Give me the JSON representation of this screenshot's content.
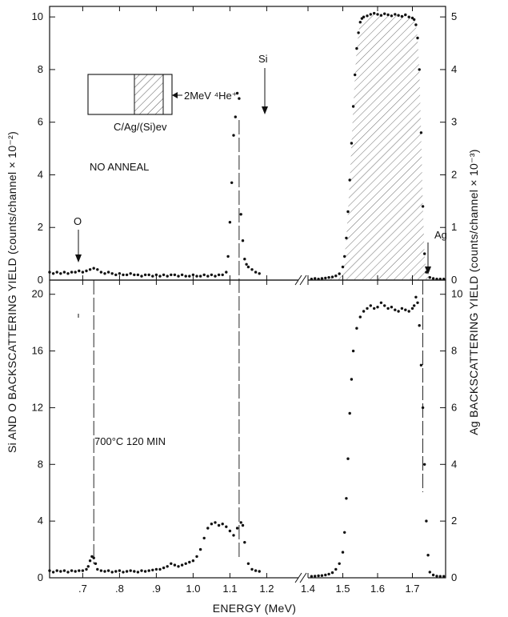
{
  "chart_data": [
    {
      "panel": "top",
      "type": "scatter",
      "annotation": "NO ANNEAL",
      "inset": {
        "label": "C/Ag/(Si)ev",
        "beam": "2MeV ⁴He⁺"
      },
      "peak_labels": [
        {
          "text": "O",
          "x": 0.73
        },
        {
          "text": "Si",
          "x": 1.125
        },
        {
          "text": "Ag",
          "x": 1.73
        }
      ],
      "left_axis": {
        "ylim": [
          0,
          10.4
        ],
        "ticks": [
          0,
          2,
          4,
          6,
          8,
          10
        ]
      },
      "right_axis": {
        "ylim": [
          0,
          5.2
        ],
        "ticks": [
          0,
          1,
          2,
          3,
          4,
          5
        ]
      },
      "xlim": [
        0.61,
        1.8
      ],
      "series": [
        {
          "axis": "left",
          "x": [
            0.61,
            0.62,
            0.63,
            0.64,
            0.65,
            0.66,
            0.67,
            0.68,
            0.69,
            0.7,
            0.71,
            0.72,
            0.73,
            0.74,
            0.75,
            0.76,
            0.77,
            0.78,
            0.79,
            0.8,
            0.81,
            0.82,
            0.83,
            0.84,
            0.85,
            0.86,
            0.87,
            0.88,
            0.89,
            0.9,
            0.91,
            0.92,
            0.93,
            0.94,
            0.95,
            0.96,
            0.97,
            0.98,
            0.99,
            1.0,
            1.01,
            1.02,
            1.03,
            1.04,
            1.05,
            1.06,
            1.07,
            1.08,
            1.09,
            1.095,
            1.1,
            1.105,
            1.11,
            1.115,
            1.12,
            1.125,
            1.13,
            1.135,
            1.14,
            1.145,
            1.15,
            1.16,
            1.17,
            1.18
          ],
          "y": [
            0.3,
            0.25,
            0.3,
            0.25,
            0.3,
            0.25,
            0.3,
            0.3,
            0.35,
            0.3,
            0.35,
            0.4,
            0.45,
            0.4,
            0.3,
            0.25,
            0.3,
            0.25,
            0.2,
            0.25,
            0.2,
            0.2,
            0.25,
            0.2,
            0.2,
            0.15,
            0.2,
            0.2,
            0.15,
            0.2,
            0.15,
            0.2,
            0.15,
            0.2,
            0.2,
            0.15,
            0.2,
            0.15,
            0.15,
            0.2,
            0.15,
            0.15,
            0.2,
            0.15,
            0.2,
            0.15,
            0.2,
            0.2,
            0.3,
            0.9,
            2.2,
            3.7,
            5.5,
            6.2,
            7.1,
            6.9,
            2.5,
            1.5,
            0.8,
            0.6,
            0.5,
            0.4,
            0.3,
            0.25
          ]
        },
        {
          "axis": "right",
          "x": [
            1.41,
            1.42,
            1.43,
            1.44,
            1.45,
            1.46,
            1.47,
            1.48,
            1.49,
            1.5,
            1.505,
            1.51,
            1.515,
            1.52,
            1.525,
            1.53,
            1.535,
            1.54,
            1.545,
            1.55,
            1.555,
            1.56,
            1.57,
            1.58,
            1.59,
            1.6,
            1.61,
            1.62,
            1.63,
            1.64,
            1.65,
            1.66,
            1.67,
            1.68,
            1.69,
            1.7,
            1.705,
            1.71,
            1.715,
            1.72,
            1.725,
            1.73,
            1.735,
            1.74,
            1.75,
            1.76,
            1.77,
            1.78,
            1.79
          ],
          "y": [
            0.02,
            0.03,
            0.02,
            0.03,
            0.04,
            0.05,
            0.06,
            0.08,
            0.12,
            0.25,
            0.45,
            0.8,
            1.3,
            1.9,
            2.6,
            3.3,
            3.9,
            4.4,
            4.7,
            4.9,
            4.97,
            5.0,
            5.02,
            5.05,
            5.07,
            5.05,
            5.03,
            5.06,
            5.04,
            5.02,
            5.05,
            5.03,
            5.01,
            5.04,
            5.0,
            4.98,
            4.95,
            4.85,
            4.6,
            4.0,
            2.8,
            1.4,
            0.5,
            0.15,
            0.05,
            0.03,
            0.02,
            0.02,
            0.02
          ]
        }
      ]
    },
    {
      "panel": "bottom",
      "type": "scatter",
      "annotation": "700°C 120 MIN",
      "left_axis": {
        "ylim": [
          0,
          21
        ],
        "ticks": [
          0,
          4,
          8,
          12,
          16,
          20
        ]
      },
      "right_axis": {
        "ylim": [
          0,
          10.5
        ],
        "ticks": [
          0,
          2,
          4,
          6,
          8,
          10
        ]
      },
      "xlim": [
        0.61,
        1.8
      ],
      "xlabel": "ENERGY (MeV)",
      "x_ticks": [
        ".7",
        ".8",
        ".9",
        "1.0",
        "1.1",
        "1.2",
        "1.4",
        "1.5",
        "1.6",
        "1.7"
      ],
      "series": [
        {
          "axis": "left",
          "x": [
            0.61,
            0.62,
            0.63,
            0.64,
            0.65,
            0.66,
            0.67,
            0.68,
            0.69,
            0.7,
            0.71,
            0.715,
            0.72,
            0.725,
            0.73,
            0.735,
            0.74,
            0.75,
            0.76,
            0.77,
            0.78,
            0.79,
            0.8,
            0.81,
            0.82,
            0.83,
            0.84,
            0.85,
            0.86,
            0.87,
            0.88,
            0.89,
            0.9,
            0.91,
            0.92,
            0.93,
            0.94,
            0.95,
            0.96,
            0.97,
            0.98,
            0.99,
            1.0,
            1.01,
            1.02,
            1.03,
            1.04,
            1.05,
            1.06,
            1.07,
            1.08,
            1.09,
            1.1,
            1.11,
            1.12,
            1.13,
            1.135,
            1.14,
            1.15,
            1.16,
            1.17,
            1.18
          ],
          "y": [
            0.5,
            0.4,
            0.5,
            0.45,
            0.5,
            0.4,
            0.5,
            0.45,
            0.5,
            0.5,
            0.6,
            0.8,
            1.2,
            1.5,
            1.4,
            1.0,
            0.6,
            0.5,
            0.45,
            0.5,
            0.4,
            0.45,
            0.5,
            0.4,
            0.45,
            0.5,
            0.45,
            0.4,
            0.5,
            0.45,
            0.5,
            0.55,
            0.6,
            0.6,
            0.7,
            0.8,
            1.0,
            0.9,
            0.8,
            0.9,
            1.0,
            1.1,
            1.2,
            1.5,
            2.0,
            2.8,
            3.5,
            3.8,
            3.9,
            3.7,
            3.8,
            3.6,
            3.3,
            3.0,
            3.5,
            3.9,
            3.7,
            2.5,
            1.0,
            0.6,
            0.5,
            0.45
          ]
        },
        {
          "axis": "right",
          "x": [
            1.41,
            1.42,
            1.43,
            1.44,
            1.45,
            1.46,
            1.47,
            1.48,
            1.49,
            1.5,
            1.505,
            1.51,
            1.515,
            1.52,
            1.525,
            1.53,
            1.54,
            1.55,
            1.56,
            1.57,
            1.58,
            1.59,
            1.6,
            1.61,
            1.62,
            1.63,
            1.64,
            1.65,
            1.66,
            1.67,
            1.68,
            1.69,
            1.7,
            1.705,
            1.71,
            1.715,
            1.72,
            1.725,
            1.73,
            1.735,
            1.74,
            1.745,
            1.75,
            1.76,
            1.77,
            1.78,
            1.79
          ],
          "y": [
            0.05,
            0.06,
            0.07,
            0.08,
            0.1,
            0.13,
            0.18,
            0.3,
            0.5,
            0.9,
            1.6,
            2.8,
            4.2,
            5.8,
            7.0,
            8.0,
            8.8,
            9.2,
            9.4,
            9.5,
            9.6,
            9.5,
            9.55,
            9.7,
            9.6,
            9.5,
            9.55,
            9.45,
            9.4,
            9.5,
            9.45,
            9.4,
            9.5,
            9.6,
            9.9,
            9.7,
            8.9,
            7.5,
            6.0,
            4.0,
            2.0,
            0.8,
            0.2,
            0.1,
            0.06,
            0.05,
            0.05
          ]
        }
      ]
    }
  ],
  "y_label_left": "Si AND O BACKSCATTERING YIELD (counts/channel × 10⁻²)",
  "y_label_right": "Ag BACKSCATTERING YIELD (counts/channel × 10⁻³)"
}
